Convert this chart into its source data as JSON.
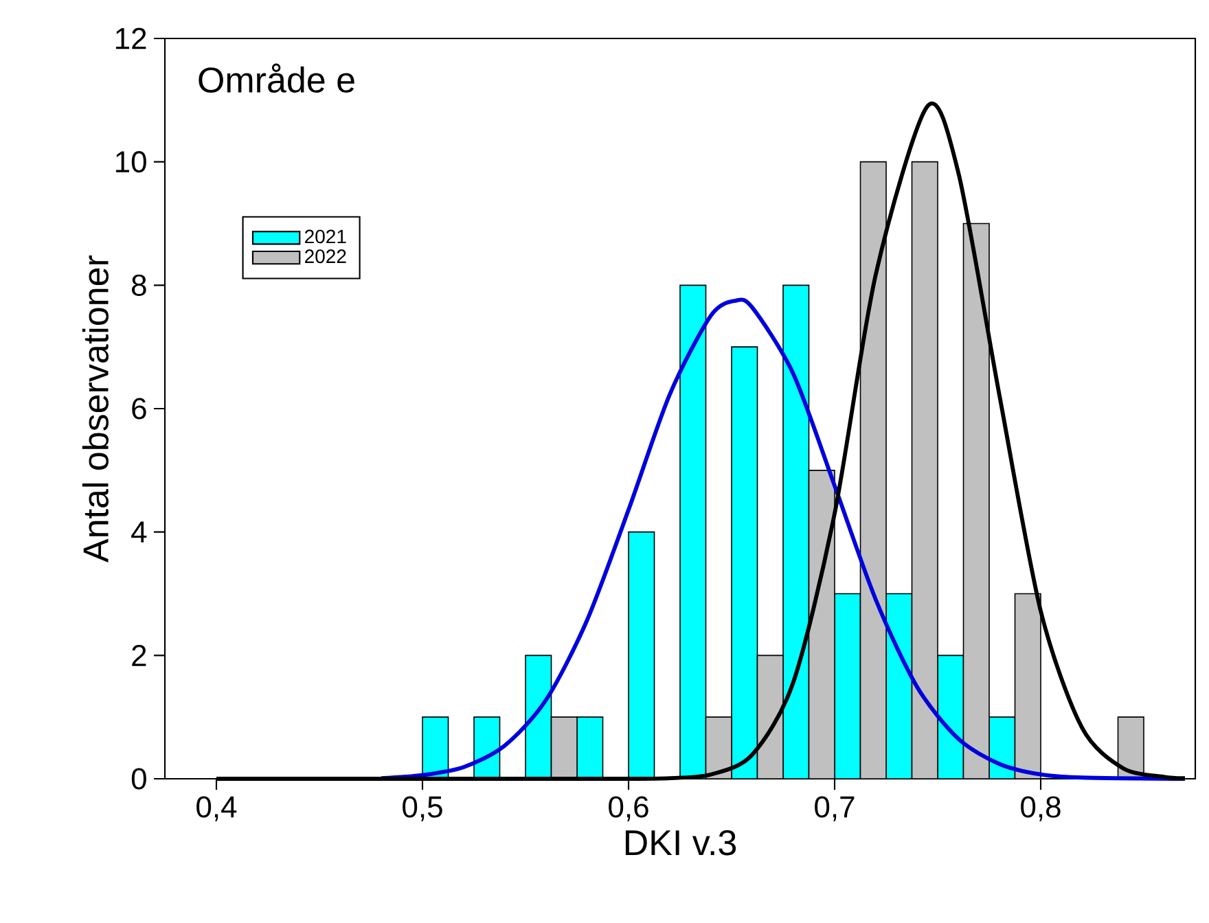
{
  "chart_data": {
    "type": "histogram",
    "title": "Område e",
    "xlabel": "DKI v.3",
    "ylabel": "Antal observationer",
    "bins": [
      0.5,
      0.525,
      0.55,
      0.575,
      0.6,
      0.625,
      0.65,
      0.675,
      0.7,
      0.725,
      0.75,
      0.775,
      0.8,
      0.825,
      0.85
    ],
    "series": [
      {
        "name": "2021",
        "color": "#00ffff",
        "values": [
          1,
          1,
          2,
          1,
          4,
          8,
          7,
          8,
          3,
          3,
          2,
          1,
          0,
          0
        ]
      },
      {
        "name": "2022",
        "color": "#c0c0c0",
        "values": [
          0,
          0,
          1,
          0,
          0,
          1,
          2,
          5,
          10,
          10,
          9,
          3,
          0,
          1
        ]
      },
      {
        "type": "line",
        "color": "#0000dd",
        "x": [
          0.48,
          0.5,
          0.52,
          0.54,
          0.56,
          0.58,
          0.6,
          0.62,
          0.64,
          0.652,
          0.66,
          0.68,
          0.7,
          0.72,
          0.74,
          0.76,
          0.78,
          0.8,
          0.82,
          0.87
        ],
        "values": [
          0.01,
          0.06,
          0.19,
          0.54,
          1.28,
          2.58,
          4.36,
          6.23,
          7.51,
          7.75,
          7.64,
          6.56,
          4.75,
          2.9,
          1.49,
          0.65,
          0.24,
          0.07,
          0.02,
          0
        ]
      },
      {
        "type": "line",
        "color": "#000000",
        "x": [
          0.4,
          0.55,
          0.6,
          0.62,
          0.64,
          0.66,
          0.68,
          0.7,
          0.72,
          0.745,
          0.76,
          0.78,
          0.8,
          0.82,
          0.84,
          0.86,
          0.87
        ],
        "values": [
          0,
          0,
          0,
          0.01,
          0.07,
          0.39,
          1.57,
          4.3,
          8.18,
          10.9,
          9.83,
          6.21,
          2.72,
          0.83,
          0.17,
          0.03,
          0.01
        ]
      }
    ],
    "xlim": [
      0.375,
      0.875
    ],
    "ylim": [
      0,
      12
    ],
    "xticks": [
      {
        "value": 0.4,
        "label": "0,4"
      },
      {
        "value": 0.5,
        "label": "0,5"
      },
      {
        "value": 0.6,
        "label": "0,6"
      },
      {
        "value": 0.7,
        "label": "0,7"
      },
      {
        "value": 0.8,
        "label": "0,8"
      }
    ],
    "yticks": [
      0,
      2,
      4,
      6,
      8,
      10,
      12
    ],
    "legend": "top left",
    "grid": false,
    "marker": "none",
    "line_style": "solid"
  }
}
